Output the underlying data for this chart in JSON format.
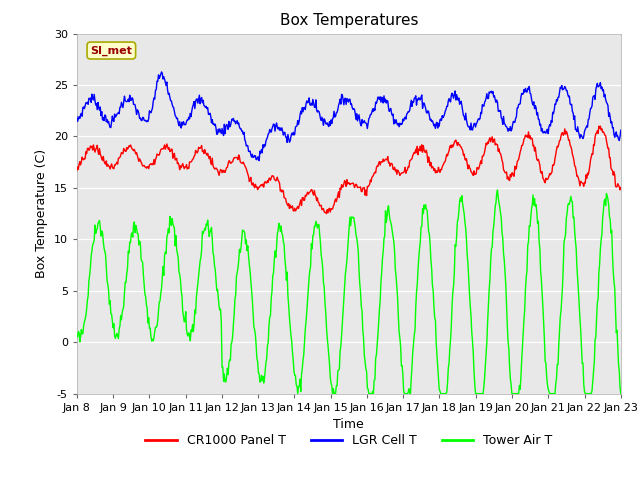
{
  "title": "Box Temperatures",
  "xlabel": "Time",
  "ylabel": "Box Temperature (C)",
  "ylim": [
    -5,
    30
  ],
  "x_tick_labels": [
    "Jan 8",
    "Jan 9",
    "Jan 10",
    "Jan 11",
    "Jan 12",
    "Jan 13",
    "Jan 14",
    "Jan 15",
    "Jan 16",
    "Jan 17",
    "Jan 18",
    "Jan 19",
    "Jan 20",
    "Jan 21",
    "Jan 22",
    "Jan 23"
  ],
  "yticks": [
    -5,
    0,
    5,
    10,
    15,
    20,
    25,
    30
  ],
  "legend_labels": [
    "CR1000 Panel T",
    "LGR Cell T",
    "Tower Air T"
  ],
  "legend_colors": [
    "#ff0000",
    "#0000ff",
    "#00ff00"
  ],
  "annotation_text": "SI_met",
  "annotation_bg": "#ffffcc",
  "annotation_fg": "#990000",
  "plot_bg": "#e8e8e8",
  "fig_bg": "#ffffff",
  "grid_color": "#ffffff",
  "title_fontsize": 11,
  "axis_label_fontsize": 9,
  "tick_fontsize": 8
}
